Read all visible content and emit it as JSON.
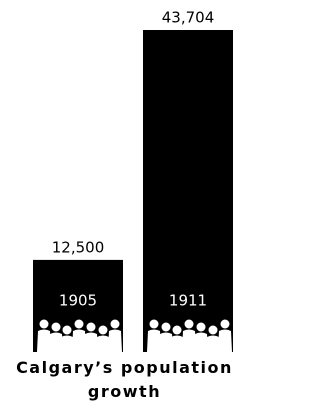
{
  "chart_data": {
    "type": "bar",
    "title": "Calgary’s population growth",
    "categories": [
      "1905",
      "1911"
    ],
    "values": [
      12500,
      43704
    ],
    "value_labels": [
      "12,500",
      "43,704"
    ],
    "color": "#000000"
  }
}
